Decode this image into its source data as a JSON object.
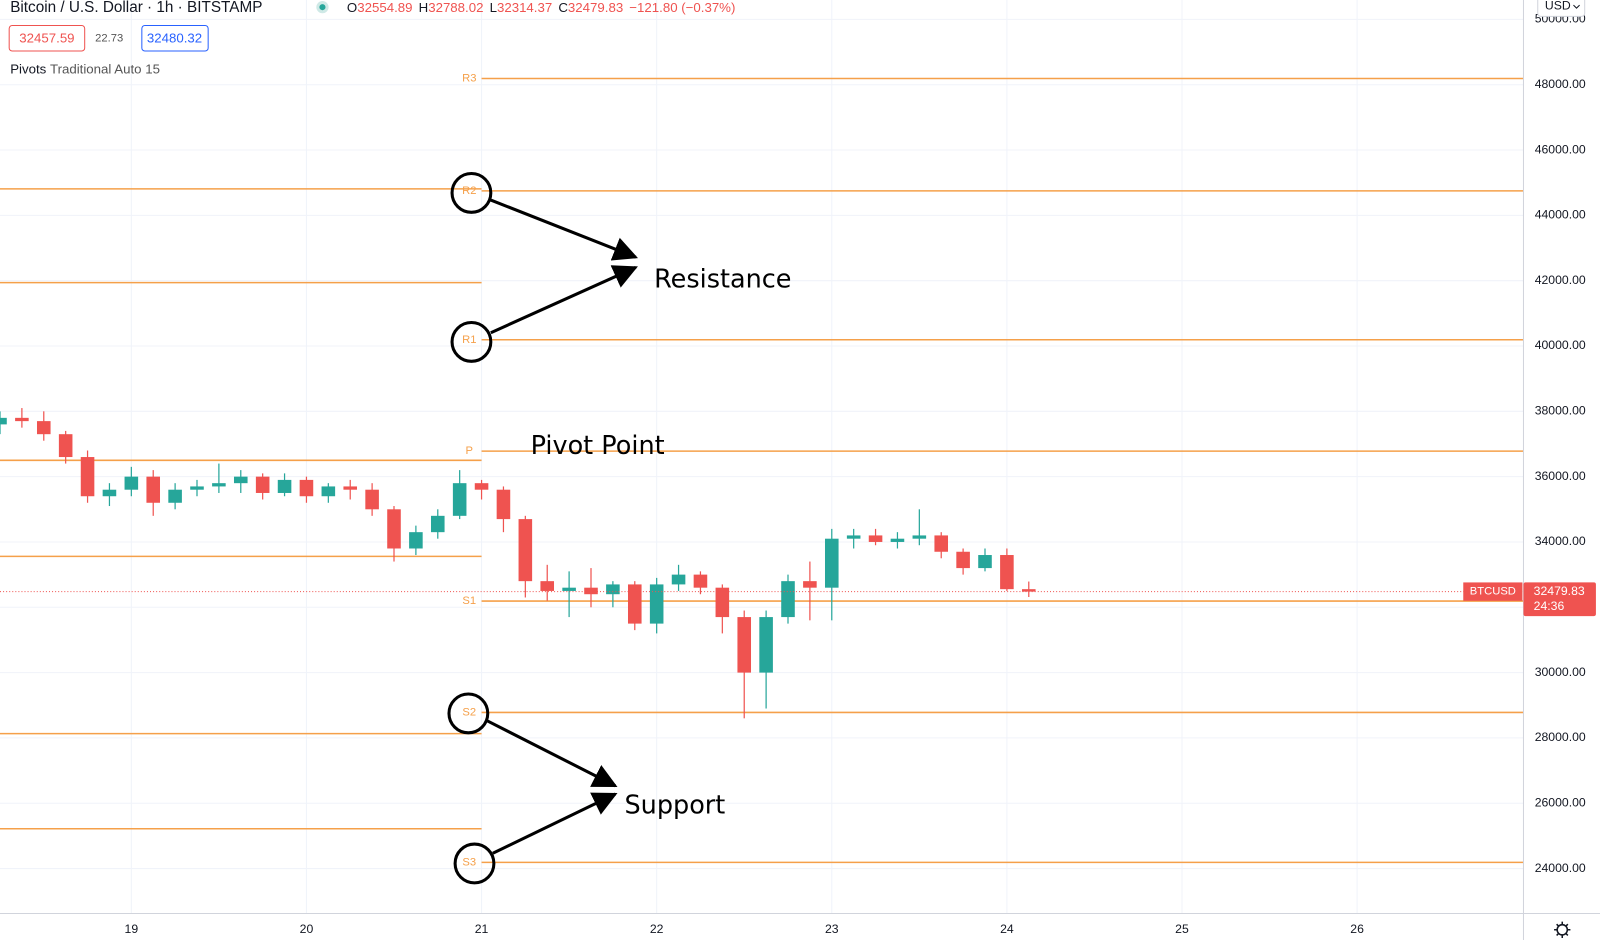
{
  "chart_data": {
    "type": "candlestick",
    "symbol": "Bitcoin / U.S. Dollar",
    "interval": "1h",
    "exchange": "BITSTAMP",
    "ohlc_labels": [
      "O",
      "H",
      "L",
      "C"
    ],
    "change_text": "−121.80 (−0.37%)",
    "bid": 32457.59,
    "spread": 22.73,
    "ask": 32480.32,
    "indicator_name": "Pivots",
    "indicator_settings": "Traditional Auto 15",
    "currency": "USD",
    "ticker": "BTCUSD",
    "countdown": "24:36",
    "annotations": [
      "Resistance",
      "Pivot Point",
      "Support"
    ],
    "up_color": "#26a69a",
    "down_color": "#ef5350",
    "pivot_color": "#f5a04a",
    "grid": true,
    "x": [
      18.25,
      18.375,
      18.5,
      18.625,
      18.75,
      18.875,
      19,
      19.125,
      19.25,
      19.375,
      19.5,
      19.625,
      19.75,
      19.875,
      20,
      20.125,
      20.25,
      20.375,
      20.5,
      20.625,
      20.75,
      20.875,
      21,
      21.125,
      21.25,
      21.375,
      21.5,
      21.625,
      21.75,
      21.875,
      22,
      22.125,
      22.25,
      22.375,
      22.5,
      22.625,
      22.75,
      22.875,
      23,
      23.125,
      23.25,
      23.375,
      23.5,
      23.625,
      23.75,
      23.875,
      24,
      24.125
    ],
    "open": [
      37600,
      37800,
      37700,
      37300,
      36600,
      35400,
      35600,
      36000,
      35200,
      35600,
      35700,
      35800,
      36000,
      35500,
      35900,
      35400,
      35700,
      35600,
      35000,
      33800,
      34300,
      34800,
      35800,
      35600,
      34700,
      32800,
      32500,
      32600,
      32400,
      32700,
      31500,
      32700,
      33000,
      32600,
      31700,
      30000,
      31700,
      32800,
      32600,
      34100,
      34200,
      34000,
      34100,
      34200,
      33700,
      33200,
      33600,
      32554.89
    ],
    "high": [
      38000,
      38100,
      38000,
      37400,
      36800,
      35800,
      36300,
      36200,
      35800,
      35900,
      36400,
      36200,
      36100,
      36100,
      36000,
      35800,
      35900,
      35800,
      35100,
      34500,
      35000,
      36200,
      35900,
      35700,
      34800,
      33300,
      33100,
      33200,
      32800,
      32800,
      32900,
      33300,
      33100,
      32700,
      31900,
      31900,
      33000,
      33400,
      34400,
      34400,
      34400,
      34300,
      35000,
      34300,
      33800,
      33800,
      33800,
      32788.02
    ],
    "low": [
      37300,
      37500,
      37100,
      36400,
      35200,
      35100,
      35400,
      34800,
      35000,
      35400,
      35500,
      35500,
      35300,
      35400,
      35200,
      35200,
      35300,
      34800,
      33400,
      33600,
      34100,
      34700,
      35300,
      34300,
      32300,
      32200,
      31700,
      32000,
      32000,
      31300,
      31200,
      32500,
      32400,
      31200,
      28600,
      28900,
      31500,
      31600,
      31600,
      33800,
      33900,
      33800,
      33900,
      33500,
      33000,
      33100,
      32500,
      32314.37
    ],
    "close": [
      37800,
      37700,
      37300,
      36600,
      35400,
      35600,
      36000,
      35200,
      35600,
      35700,
      35800,
      36000,
      35500,
      35900,
      35400,
      35700,
      35600,
      35000,
      33800,
      34300,
      34800,
      35800,
      35600,
      34700,
      32800,
      32500,
      32600,
      32400,
      32700,
      31500,
      32700,
      33000,
      32600,
      31700,
      30000,
      31700,
      32800,
      32600,
      34100,
      34200,
      34000,
      34100,
      34200,
      33700,
      33200,
      33600,
      32554.89,
      32479.83
    ],
    "pivots": [
      {
        "from": 21,
        "levels": [
          {
            "name": "R3",
            "value": 48190
          },
          {
            "name": "R2",
            "value": 44750
          },
          {
            "name": "R1",
            "value": 40190
          },
          {
            "name": "P",
            "value": 36780
          },
          {
            "name": "S1",
            "value": 32190
          },
          {
            "name": "S2",
            "value": 28780
          },
          {
            "name": "S3",
            "value": 24190
          }
        ]
      },
      {
        "to": 21,
        "levels": [
          {
            "value": 44810
          },
          {
            "value": 41940
          },
          {
            "value": 36500
          },
          {
            "value": 33560
          },
          {
            "value": 28130
          },
          {
            "value": 25220
          }
        ]
      }
    ],
    "xlim": [
      18.25,
      26.95
    ],
    "xticks": [
      19,
      20,
      21,
      22,
      23,
      24,
      25,
      26
    ],
    "ylim": [
      22625,
      50594
    ],
    "yticks": [
      {
        "value": 24000,
        "label": "24000.00"
      },
      {
        "value": 26000,
        "label": "26000.00"
      },
      {
        "value": 28000,
        "label": "28000.00"
      },
      {
        "value": 30000,
        "label": "30000.00"
      },
      {
        "value": 32000,
        "label": "32000.00"
      },
      {
        "value": 34000,
        "label": "34000.00"
      },
      {
        "value": 36000,
        "label": "36000.00"
      },
      {
        "value": 38000,
        "label": "38000.00"
      },
      {
        "value": 40000,
        "label": "40000.00"
      },
      {
        "value": 42000,
        "label": "42000.00"
      },
      {
        "value": 44000,
        "label": "44000.00"
      },
      {
        "value": 46000,
        "label": "46000.00"
      },
      {
        "value": 48000,
        "label": "48000.00"
      },
      {
        "value": 50000,
        "label": "50000.00"
      }
    ]
  }
}
